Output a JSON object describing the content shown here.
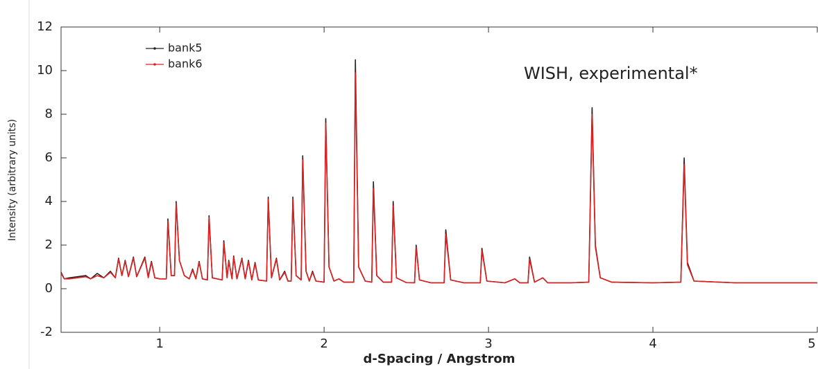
{
  "chart_data": {
    "type": "line",
    "annotation": "WISH, experimental*",
    "x_label": "d-Spacing / Angstrom",
    "y_label": "Intensity (arbitrary units)",
    "xlim": [
      0.4,
      5
    ],
    "ylim": [
      -2,
      12
    ],
    "xticks": [
      1,
      2,
      3,
      4,
      5
    ],
    "yticks": [
      -2,
      0,
      2,
      4,
      6,
      8,
      10,
      12
    ],
    "grid": false,
    "legend": "upper left",
    "x": [
      0.4,
      0.42,
      0.45,
      0.5,
      0.55,
      0.58,
      0.62,
      0.66,
      0.7,
      0.73,
      0.75,
      0.77,
      0.79,
      0.81,
      0.84,
      0.86,
      0.91,
      0.93,
      0.95,
      0.97,
      1.0,
      1.04,
      1.05,
      1.07,
      1.09,
      1.1,
      1.12,
      1.15,
      1.18,
      1.2,
      1.22,
      1.24,
      1.26,
      1.29,
      1.3,
      1.32,
      1.38,
      1.39,
      1.41,
      1.42,
      1.44,
      1.45,
      1.47,
      1.5,
      1.52,
      1.54,
      1.56,
      1.58,
      1.6,
      1.65,
      1.66,
      1.68,
      1.71,
      1.73,
      1.76,
      1.78,
      1.8,
      1.81,
      1.83,
      1.86,
      1.87,
      1.89,
      1.91,
      1.93,
      1.95,
      2.0,
      2.01,
      2.03,
      2.06,
      2.09,
      2.12,
      2.18,
      2.19,
      2.21,
      2.25,
      2.29,
      2.3,
      2.32,
      2.36,
      2.41,
      2.42,
      2.44,
      2.5,
      2.55,
      2.56,
      2.58,
      2.65,
      2.73,
      2.74,
      2.77,
      2.85,
      2.95,
      2.96,
      2.99,
      3.1,
      3.16,
      3.19,
      3.24,
      3.25,
      3.28,
      3.33,
      3.36,
      3.5,
      3.61,
      3.63,
      3.65,
      3.68,
      3.75,
      4.0,
      4.17,
      4.19,
      4.21,
      4.25,
      4.5,
      4.8,
      5.0
    ],
    "series": [
      {
        "name": "bank5",
        "color": "#222222",
        "values": [
          0.75,
          0.45,
          0.5,
          0.55,
          0.6,
          0.45,
          0.7,
          0.5,
          0.8,
          0.5,
          1.4,
          0.6,
          1.3,
          0.55,
          1.45,
          0.55,
          1.45,
          0.55,
          1.25,
          0.5,
          0.45,
          0.45,
          3.2,
          0.6,
          0.6,
          4.0,
          1.3,
          0.6,
          0.45,
          0.9,
          0.45,
          1.25,
          0.45,
          0.4,
          3.35,
          0.5,
          0.4,
          2.2,
          0.5,
          1.3,
          0.45,
          1.5,
          0.45,
          1.4,
          0.45,
          1.3,
          0.4,
          1.2,
          0.4,
          0.35,
          4.2,
          0.5,
          1.4,
          0.4,
          0.8,
          0.35,
          0.35,
          4.2,
          0.6,
          0.4,
          6.1,
          0.8,
          0.35,
          0.8,
          0.35,
          0.3,
          7.8,
          1.0,
          0.35,
          0.45,
          0.3,
          0.3,
          10.5,
          1.0,
          0.35,
          0.3,
          4.9,
          0.6,
          0.3,
          0.3,
          4.0,
          0.5,
          0.28,
          0.27,
          2.0,
          0.4,
          0.27,
          0.27,
          2.7,
          0.4,
          0.27,
          0.27,
          1.85,
          0.35,
          0.27,
          0.45,
          0.27,
          0.27,
          1.45,
          0.3,
          0.5,
          0.27,
          0.27,
          0.3,
          8.3,
          2.0,
          0.5,
          0.3,
          0.27,
          0.3,
          6.0,
          1.2,
          0.35,
          0.27,
          0.27,
          0.27
        ]
      },
      {
        "name": "bank6",
        "color": "#e02020",
        "values": [
          0.7,
          0.45,
          0.45,
          0.5,
          0.55,
          0.45,
          0.6,
          0.5,
          0.75,
          0.5,
          1.35,
          0.6,
          1.25,
          0.55,
          1.4,
          0.55,
          1.4,
          0.5,
          1.2,
          0.5,
          0.45,
          0.45,
          3.1,
          0.6,
          0.6,
          3.9,
          1.3,
          0.6,
          0.45,
          0.85,
          0.45,
          1.2,
          0.45,
          0.4,
          3.25,
          0.5,
          0.4,
          2.1,
          0.5,
          1.25,
          0.45,
          1.45,
          0.45,
          1.35,
          0.45,
          1.25,
          0.4,
          1.15,
          0.4,
          0.35,
          4.1,
          0.5,
          1.35,
          0.4,
          0.75,
          0.35,
          0.35,
          4.1,
          0.6,
          0.4,
          5.9,
          0.8,
          0.35,
          0.75,
          0.35,
          0.3,
          7.6,
          1.0,
          0.35,
          0.45,
          0.3,
          0.3,
          9.9,
          1.0,
          0.35,
          0.3,
          4.6,
          0.6,
          0.3,
          0.3,
          3.8,
          0.5,
          0.28,
          0.27,
          1.9,
          0.4,
          0.27,
          0.27,
          2.5,
          0.4,
          0.27,
          0.27,
          1.75,
          0.35,
          0.27,
          0.45,
          0.27,
          0.27,
          1.35,
          0.3,
          0.5,
          0.27,
          0.27,
          0.3,
          8.0,
          1.9,
          0.5,
          0.3,
          0.27,
          0.3,
          5.7,
          1.1,
          0.35,
          0.27,
          0.27,
          0.27
        ]
      }
    ]
  }
}
